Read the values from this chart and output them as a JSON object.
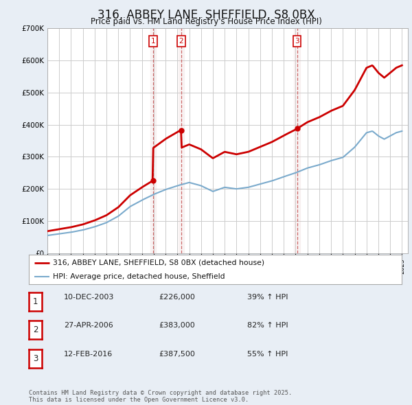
{
  "title": "316, ABBEY LANE, SHEFFIELD, S8 0BX",
  "subtitle": "Price paid vs. HM Land Registry's House Price Index (HPI)",
  "ylim": [
    0,
    700000
  ],
  "yticks": [
    0,
    100000,
    200000,
    300000,
    400000,
    500000,
    600000,
    700000
  ],
  "xlim": [
    1995,
    2025.5
  ],
  "background_color": "#e8eef5",
  "plot_bg_color": "#ffffff",
  "grid_color": "#cccccc",
  "title_fontsize": 12,
  "subtitle_fontsize": 9,
  "vline_dates": [
    2003.94,
    2006.32,
    2016.12
  ],
  "purchase_dates": [
    2003.94,
    2006.32,
    2016.12
  ],
  "purchase_prices": [
    226000,
    383000,
    387500
  ],
  "purchase_labels": [
    "1",
    "2",
    "3"
  ],
  "legend_entries": [
    {
      "label": "316, ABBEY LANE, SHEFFIELD, S8 0BX (detached house)",
      "color": "#cc0000",
      "lw": 2
    },
    {
      "label": "HPI: Average price, detached house, Sheffield",
      "color": "#7aaacc",
      "lw": 1.5
    }
  ],
  "table_rows": [
    {
      "num": "1",
      "date": "10-DEC-2003",
      "price": "£226,000",
      "hpi": "39% ↑ HPI"
    },
    {
      "num": "2",
      "date": "27-APR-2006",
      "price": "£383,000",
      "hpi": "82% ↑ HPI"
    },
    {
      "num": "3",
      "date": "12-FEB-2016",
      "price": "£387,500",
      "hpi": "55% ↑ HPI"
    }
  ],
  "footer": "Contains HM Land Registry data © Crown copyright and database right 2025.\nThis data is licensed under the Open Government Licence v3.0.",
  "hpi_line_color": "#7aaacc",
  "price_line_color": "#cc0000",
  "vline_color": "#cc6666",
  "vspan_color": "#ddbbbb"
}
